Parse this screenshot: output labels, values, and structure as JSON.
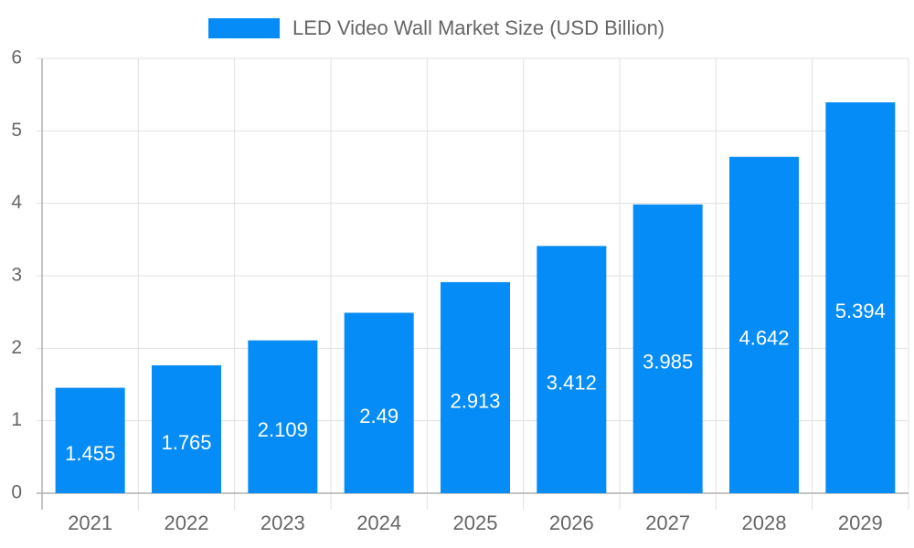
{
  "chart_data": {
    "type": "bar",
    "series": [
      {
        "name": "LED Video Wall Market Size (USD Billion)",
        "color": "#058cf6",
        "values": [
          1.455,
          1.765,
          2.109,
          2.49,
          2.913,
          3.412,
          3.985,
          4.642,
          5.394
        ]
      }
    ],
    "categories": [
      "2021",
      "2022",
      "2023",
      "2024",
      "2025",
      "2026",
      "2027",
      "2028",
      "2029"
    ],
    "ylim": [
      0,
      6
    ],
    "yticks": [
      0,
      1,
      2,
      3,
      4,
      5,
      6
    ],
    "grid": true,
    "legend": "top"
  }
}
